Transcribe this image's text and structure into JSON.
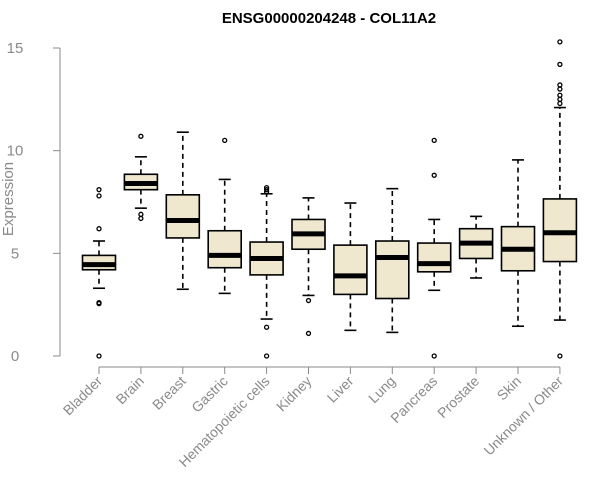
{
  "chart_data": {
    "type": "box",
    "title": "ENSG00000204248 - COL11A2",
    "ylabel": "Expression",
    "xlabel": "",
    "ylim": [
      0,
      15
    ],
    "yticks": [
      0,
      5,
      10,
      15
    ],
    "box_fill": "#efe8cf",
    "categories": [
      "Bladder",
      "Brain",
      "Breast",
      "Gastric",
      "Hematopoietic cells",
      "Kidney",
      "Liver",
      "Lung",
      "Pancreas",
      "Prostate",
      "Skin",
      "Unknown / Other"
    ],
    "boxes": [
      {
        "category": "Bladder",
        "whisker_low": 3.3,
        "q1": 4.2,
        "median": 4.45,
        "q3": 4.9,
        "whisker_high": 5.6,
        "outliers": [
          0.0,
          2.55,
          2.6,
          6.2,
          7.8,
          8.1
        ]
      },
      {
        "category": "Brain",
        "whisker_low": 7.2,
        "q1": 8.1,
        "median": 8.4,
        "q3": 8.85,
        "whisker_high": 9.7,
        "outliers": [
          6.7,
          6.9,
          10.7
        ]
      },
      {
        "category": "Breast",
        "whisker_low": 3.25,
        "q1": 5.75,
        "median": 6.6,
        "q3": 7.85,
        "whisker_high": 10.9,
        "outliers": []
      },
      {
        "category": "Gastric",
        "whisker_low": 3.05,
        "q1": 4.3,
        "median": 4.9,
        "q3": 6.1,
        "whisker_high": 8.6,
        "outliers": [
          10.5
        ]
      },
      {
        "category": "Hematopoietic cells",
        "whisker_low": 1.8,
        "q1": 3.95,
        "median": 4.75,
        "q3": 5.55,
        "whisker_high": 7.9,
        "outliers": [
          0.0,
          1.4,
          8.0,
          8.1,
          8.2
        ]
      },
      {
        "category": "Kidney",
        "whisker_low": 2.95,
        "q1": 5.2,
        "median": 5.95,
        "q3": 6.65,
        "whisker_high": 7.7,
        "outliers": [
          1.1,
          2.7
        ]
      },
      {
        "category": "Liver",
        "whisker_low": 1.25,
        "q1": 3.0,
        "median": 3.9,
        "q3": 5.4,
        "whisker_high": 7.45,
        "outliers": []
      },
      {
        "category": "Lung",
        "whisker_low": 1.15,
        "q1": 2.8,
        "median": 4.8,
        "q3": 5.6,
        "whisker_high": 8.15,
        "outliers": []
      },
      {
        "category": "Pancreas",
        "whisker_low": 3.2,
        "q1": 4.1,
        "median": 4.5,
        "q3": 5.5,
        "whisker_high": 6.65,
        "outliers": [
          0.0,
          8.8,
          10.5
        ]
      },
      {
        "category": "Prostate",
        "whisker_low": 3.8,
        "q1": 4.75,
        "median": 5.5,
        "q3": 6.2,
        "whisker_high": 6.8,
        "outliers": []
      },
      {
        "category": "Skin",
        "whisker_low": 1.45,
        "q1": 4.15,
        "median": 5.2,
        "q3": 6.3,
        "whisker_high": 9.55,
        "outliers": []
      },
      {
        "category": "Unknown / Other",
        "whisker_low": 1.75,
        "q1": 4.6,
        "median": 6.0,
        "q3": 7.65,
        "whisker_high": 12.1,
        "outliers": [
          0.0,
          12.3,
          12.5,
          12.7,
          13.0,
          13.2,
          14.2,
          15.3
        ]
      }
    ]
  }
}
